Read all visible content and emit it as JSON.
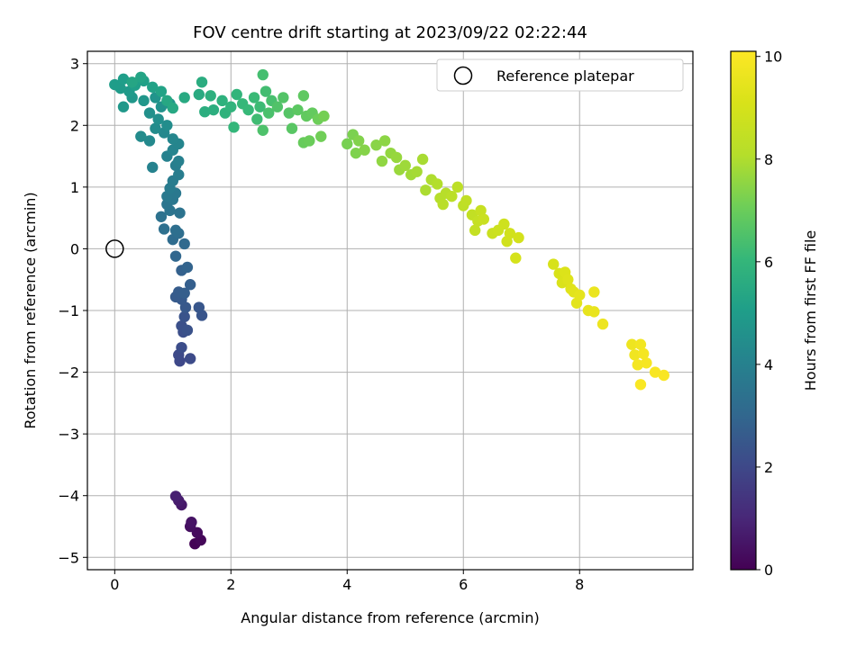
{
  "chart_data": {
    "type": "scatter",
    "title": "FOV centre drift starting at 2023/09/22 02:22:44",
    "xlabel": "Angular distance from reference (arcmin)",
    "ylabel": "Rotation from reference (arcmin)",
    "xlim": [
      -0.47,
      9.95
    ],
    "ylim": [
      -5.2,
      3.2
    ],
    "x_ticks": [
      0,
      2,
      4,
      6,
      8
    ],
    "y_ticks": [
      -5,
      -4,
      -3,
      -2,
      -1,
      0,
      1,
      2,
      3
    ],
    "grid": true,
    "legend": {
      "placement": "upper right",
      "entries": [
        "Reference platepar"
      ]
    },
    "reference_point": {
      "x": 0,
      "y": 0,
      "label": "Reference platepar"
    },
    "colorbar": {
      "label": "Hours from first FF file",
      "colormap": "viridis",
      "range": [
        0,
        10.1
      ],
      "ticks": [
        0,
        2,
        4,
        6,
        8,
        10
      ]
    },
    "series": [
      {
        "points": [
          {
            "x": 1.38,
            "y": -4.78,
            "h": 0.05
          },
          {
            "x": 1.48,
            "y": -4.72,
            "h": 0.15
          },
          {
            "x": 1.42,
            "y": -4.6,
            "h": 0.25
          },
          {
            "x": 1.3,
            "y": -4.5,
            "h": 0.35
          },
          {
            "x": 1.32,
            "y": -4.43,
            "h": 0.45
          },
          {
            "x": 1.15,
            "y": -4.15,
            "h": 0.6
          },
          {
            "x": 1.1,
            "y": -4.08,
            "h": 0.7
          },
          {
            "x": 1.05,
            "y": -4.01,
            "h": 0.8
          },
          {
            "x": 1.12,
            "y": -1.82,
            "h": 2.0
          },
          {
            "x": 1.1,
            "y": -1.72,
            "h": 2.05
          },
          {
            "x": 1.3,
            "y": -1.78,
            "h": 2.1
          },
          {
            "x": 1.15,
            "y": -1.6,
            "h": 2.15
          },
          {
            "x": 1.18,
            "y": -1.35,
            "h": 2.2
          },
          {
            "x": 1.15,
            "y": -1.25,
            "h": 2.25
          },
          {
            "x": 1.25,
            "y": -1.32,
            "h": 2.3
          },
          {
            "x": 1.2,
            "y": -1.1,
            "h": 2.35
          },
          {
            "x": 1.5,
            "y": -1.08,
            "h": 2.4
          },
          {
            "x": 1.45,
            "y": -0.95,
            "h": 2.45
          },
          {
            "x": 1.22,
            "y": -0.95,
            "h": 2.5
          },
          {
            "x": 1.15,
            "y": -0.82,
            "h": 2.55
          },
          {
            "x": 1.05,
            "y": -0.78,
            "h": 2.6
          },
          {
            "x": 1.1,
            "y": -0.7,
            "h": 2.65
          },
          {
            "x": 1.2,
            "y": -0.72,
            "h": 2.7
          },
          {
            "x": 1.3,
            "y": -0.58,
            "h": 2.75
          },
          {
            "x": 1.15,
            "y": -0.35,
            "h": 2.8
          },
          {
            "x": 1.25,
            "y": -0.3,
            "h": 2.9
          },
          {
            "x": 1.05,
            "y": -0.12,
            "h": 3.0
          },
          {
            "x": 1.2,
            "y": 0.08,
            "h": 3.1
          },
          {
            "x": 1.0,
            "y": 0.15,
            "h": 3.2
          },
          {
            "x": 1.1,
            "y": 0.25,
            "h": 3.25
          },
          {
            "x": 1.05,
            "y": 0.3,
            "h": 3.3
          },
          {
            "x": 0.85,
            "y": 0.32,
            "h": 3.35
          },
          {
            "x": 0.8,
            "y": 0.52,
            "h": 3.4
          },
          {
            "x": 1.12,
            "y": 0.58,
            "h": 3.45
          },
          {
            "x": 0.95,
            "y": 0.62,
            "h": 3.5
          },
          {
            "x": 0.9,
            "y": 0.72,
            "h": 3.55
          },
          {
            "x": 1.0,
            "y": 0.8,
            "h": 3.6
          },
          {
            "x": 1.05,
            "y": 0.9,
            "h": 3.65
          },
          {
            "x": 0.9,
            "y": 0.85,
            "h": 3.7
          },
          {
            "x": 0.95,
            "y": 0.98,
            "h": 3.75
          },
          {
            "x": 1.0,
            "y": 1.1,
            "h": 3.8
          },
          {
            "x": 1.1,
            "y": 1.2,
            "h": 3.85
          },
          {
            "x": 1.05,
            "y": 1.35,
            "h": 3.9
          },
          {
            "x": 1.1,
            "y": 1.42,
            "h": 3.95
          },
          {
            "x": 0.9,
            "y": 1.5,
            "h": 4.0
          },
          {
            "x": 0.65,
            "y": 1.32,
            "h": 4.05
          },
          {
            "x": 1.0,
            "y": 1.6,
            "h": 4.1
          },
          {
            "x": 1.1,
            "y": 1.7,
            "h": 4.15
          },
          {
            "x": 1.0,
            "y": 1.78,
            "h": 4.2
          },
          {
            "x": 0.85,
            "y": 1.88,
            "h": 4.25
          },
          {
            "x": 0.6,
            "y": 1.75,
            "h": 4.3
          },
          {
            "x": 0.45,
            "y": 1.82,
            "h": 4.35
          },
          {
            "x": 0.7,
            "y": 1.95,
            "h": 4.4
          },
          {
            "x": 0.9,
            "y": 2.0,
            "h": 4.45
          },
          {
            "x": 0.75,
            "y": 2.1,
            "h": 4.5
          },
          {
            "x": 0.6,
            "y": 2.2,
            "h": 4.55
          },
          {
            "x": 0.8,
            "y": 2.3,
            "h": 4.6
          },
          {
            "x": 0.95,
            "y": 2.35,
            "h": 4.65
          },
          {
            "x": 0.7,
            "y": 2.45,
            "h": 4.7
          },
          {
            "x": 0.5,
            "y": 2.4,
            "h": 4.75
          },
          {
            "x": 0.3,
            "y": 2.45,
            "h": 4.8
          },
          {
            "x": 0.15,
            "y": 2.3,
            "h": 4.85
          },
          {
            "x": 0.25,
            "y": 2.55,
            "h": 4.9
          },
          {
            "x": 0.1,
            "y": 2.6,
            "h": 4.95
          },
          {
            "x": 0.0,
            "y": 2.66,
            "h": 5.0
          },
          {
            "x": 0.15,
            "y": 2.75,
            "h": 5.05
          },
          {
            "x": 0.35,
            "y": 2.65,
            "h": 5.1
          },
          {
            "x": 0.5,
            "y": 2.72,
            "h": 5.15
          },
          {
            "x": 0.65,
            "y": 2.62,
            "h": 5.2
          },
          {
            "x": 0.8,
            "y": 2.55,
            "h": 5.25
          },
          {
            "x": 0.45,
            "y": 2.78,
            "h": 5.3
          },
          {
            "x": 0.3,
            "y": 2.7,
            "h": 5.35
          },
          {
            "x": 0.9,
            "y": 2.4,
            "h": 5.4
          },
          {
            "x": 1.0,
            "y": 2.28,
            "h": 5.45
          },
          {
            "x": 1.2,
            "y": 2.45,
            "h": 5.5
          },
          {
            "x": 1.45,
            "y": 2.5,
            "h": 5.55
          },
          {
            "x": 1.5,
            "y": 2.7,
            "h": 5.6
          },
          {
            "x": 1.55,
            "y": 2.22,
            "h": 5.65
          },
          {
            "x": 1.7,
            "y": 2.25,
            "h": 5.7
          },
          {
            "x": 1.65,
            "y": 2.48,
            "h": 5.75
          },
          {
            "x": 1.85,
            "y": 2.4,
            "h": 5.8
          },
          {
            "x": 1.9,
            "y": 2.2,
            "h": 5.85
          },
          {
            "x": 2.0,
            "y": 2.3,
            "h": 5.9
          },
          {
            "x": 2.1,
            "y": 2.5,
            "h": 5.95
          },
          {
            "x": 2.05,
            "y": 1.97,
            "h": 6.0
          },
          {
            "x": 2.2,
            "y": 2.35,
            "h": 6.05
          },
          {
            "x": 2.3,
            "y": 2.25,
            "h": 6.1
          },
          {
            "x": 2.4,
            "y": 2.45,
            "h": 6.15
          },
          {
            "x": 2.5,
            "y": 2.3,
            "h": 6.2
          },
          {
            "x": 2.45,
            "y": 2.1,
            "h": 6.25
          },
          {
            "x": 2.6,
            "y": 2.55,
            "h": 6.3
          },
          {
            "x": 2.55,
            "y": 2.82,
            "h": 6.35
          },
          {
            "x": 2.7,
            "y": 2.4,
            "h": 6.4
          },
          {
            "x": 2.65,
            "y": 2.2,
            "h": 6.45
          },
          {
            "x": 2.55,
            "y": 1.92,
            "h": 6.5
          },
          {
            "x": 2.8,
            "y": 2.3,
            "h": 6.55
          },
          {
            "x": 2.9,
            "y": 2.45,
            "h": 6.6
          },
          {
            "x": 3.0,
            "y": 2.2,
            "h": 6.65
          },
          {
            "x": 3.05,
            "y": 1.95,
            "h": 6.7
          },
          {
            "x": 3.15,
            "y": 2.25,
            "h": 6.75
          },
          {
            "x": 3.25,
            "y": 2.48,
            "h": 6.8
          },
          {
            "x": 3.3,
            "y": 2.15,
            "h": 6.85
          },
          {
            "x": 3.4,
            "y": 2.2,
            "h": 6.9
          },
          {
            "x": 3.25,
            "y": 1.72,
            "h": 6.95
          },
          {
            "x": 3.35,
            "y": 1.75,
            "h": 7.0
          },
          {
            "x": 3.5,
            "y": 2.1,
            "h": 7.05
          },
          {
            "x": 3.55,
            "y": 1.82,
            "h": 7.1
          },
          {
            "x": 3.6,
            "y": 2.15,
            "h": 7.15
          },
          {
            "x": 4.0,
            "y": 1.7,
            "h": 7.2
          },
          {
            "x": 4.1,
            "y": 1.85,
            "h": 7.25
          },
          {
            "x": 4.15,
            "y": 1.55,
            "h": 7.3
          },
          {
            "x": 4.2,
            "y": 1.75,
            "h": 7.35
          },
          {
            "x": 4.3,
            "y": 1.6,
            "h": 7.4
          },
          {
            "x": 4.5,
            "y": 1.68,
            "h": 7.45
          },
          {
            "x": 4.65,
            "y": 1.75,
            "h": 7.5
          },
          {
            "x": 4.6,
            "y": 1.42,
            "h": 7.55
          },
          {
            "x": 4.75,
            "y": 1.55,
            "h": 7.6
          },
          {
            "x": 4.85,
            "y": 1.48,
            "h": 7.65
          },
          {
            "x": 4.9,
            "y": 1.28,
            "h": 7.7
          },
          {
            "x": 5.0,
            "y": 1.35,
            "h": 7.75
          },
          {
            "x": 5.1,
            "y": 1.2,
            "h": 7.8
          },
          {
            "x": 5.2,
            "y": 1.25,
            "h": 7.85
          },
          {
            "x": 5.3,
            "y": 1.45,
            "h": 7.9
          },
          {
            "x": 5.35,
            "y": 0.95,
            "h": 7.95
          },
          {
            "x": 5.45,
            "y": 1.12,
            "h": 8.0
          },
          {
            "x": 5.55,
            "y": 1.05,
            "h": 8.05
          },
          {
            "x": 5.6,
            "y": 0.82,
            "h": 8.1
          },
          {
            "x": 5.7,
            "y": 0.9,
            "h": 8.15
          },
          {
            "x": 5.65,
            "y": 0.72,
            "h": 8.2
          },
          {
            "x": 5.8,
            "y": 0.85,
            "h": 8.25
          },
          {
            "x": 5.9,
            "y": 1.0,
            "h": 8.3
          },
          {
            "x": 6.0,
            "y": 0.7,
            "h": 8.35
          },
          {
            "x": 6.05,
            "y": 0.78,
            "h": 8.4
          },
          {
            "x": 6.15,
            "y": 0.55,
            "h": 8.45
          },
          {
            "x": 6.2,
            "y": 0.3,
            "h": 8.5
          },
          {
            "x": 6.25,
            "y": 0.45,
            "h": 8.55
          },
          {
            "x": 6.3,
            "y": 0.62,
            "h": 8.6
          },
          {
            "x": 6.35,
            "y": 0.48,
            "h": 8.65
          },
          {
            "x": 6.5,
            "y": 0.25,
            "h": 8.7
          },
          {
            "x": 6.6,
            "y": 0.3,
            "h": 8.75
          },
          {
            "x": 6.7,
            "y": 0.4,
            "h": 8.8
          },
          {
            "x": 6.75,
            "y": 0.12,
            "h": 8.85
          },
          {
            "x": 6.8,
            "y": 0.25,
            "h": 8.9
          },
          {
            "x": 6.95,
            "y": 0.18,
            "h": 8.95
          },
          {
            "x": 6.9,
            "y": -0.15,
            "h": 9.0
          },
          {
            "x": 7.55,
            "y": -0.25,
            "h": 9.05
          },
          {
            "x": 7.65,
            "y": -0.4,
            "h": 9.1
          },
          {
            "x": 7.7,
            "y": -0.55,
            "h": 9.15
          },
          {
            "x": 7.75,
            "y": -0.38,
            "h": 9.2
          },
          {
            "x": 7.8,
            "y": -0.5,
            "h": 9.25
          },
          {
            "x": 7.85,
            "y": -0.65,
            "h": 9.3
          },
          {
            "x": 7.9,
            "y": -0.7,
            "h": 9.35
          },
          {
            "x": 7.95,
            "y": -0.88,
            "h": 9.4
          },
          {
            "x": 8.0,
            "y": -0.75,
            "h": 9.45
          },
          {
            "x": 8.15,
            "y": -1.0,
            "h": 9.5
          },
          {
            "x": 8.25,
            "y": -1.02,
            "h": 9.55
          },
          {
            "x": 8.25,
            "y": -0.7,
            "h": 9.6
          },
          {
            "x": 8.4,
            "y": -1.22,
            "h": 9.65
          },
          {
            "x": 8.9,
            "y": -1.55,
            "h": 9.7
          },
          {
            "x": 8.95,
            "y": -1.72,
            "h": 9.75
          },
          {
            "x": 9.05,
            "y": -1.55,
            "h": 9.8
          },
          {
            "x": 9.0,
            "y": -1.88,
            "h": 9.85
          },
          {
            "x": 9.1,
            "y": -1.7,
            "h": 9.88
          },
          {
            "x": 9.15,
            "y": -1.85,
            "h": 9.92
          },
          {
            "x": 9.3,
            "y": -2.0,
            "h": 9.95
          },
          {
            "x": 9.45,
            "y": -2.05,
            "h": 9.98
          },
          {
            "x": 9.05,
            "y": -2.2,
            "h": 10.0
          }
        ]
      }
    ]
  }
}
